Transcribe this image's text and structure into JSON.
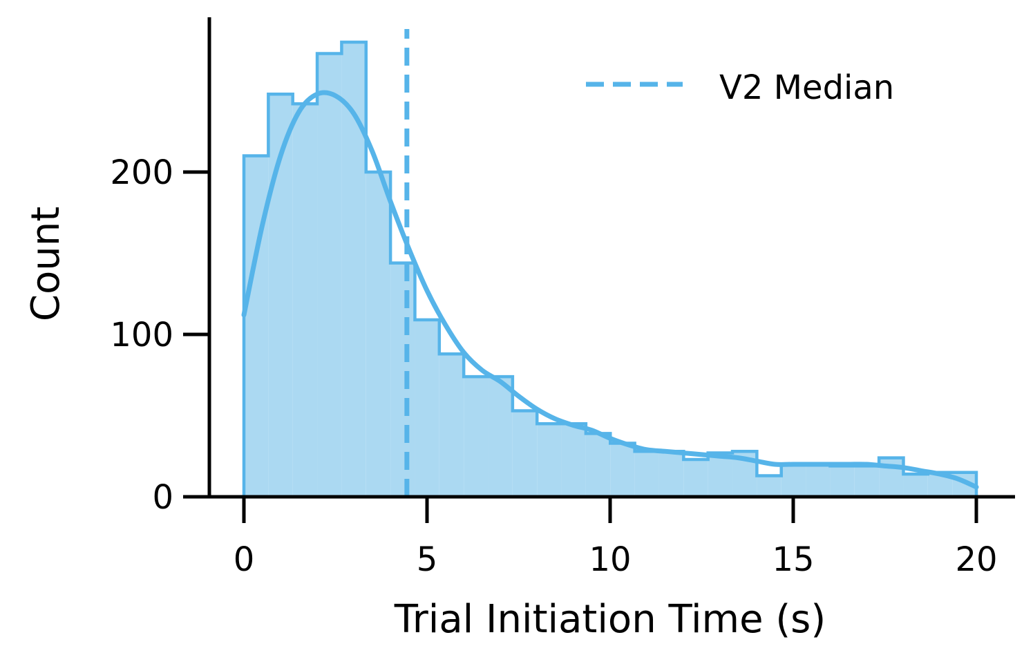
{
  "chart_data": {
    "type": "histogram",
    "title": "",
    "xlabel": "Trial Initiation Time (s)",
    "ylabel": "Count",
    "xlim": [
      -1,
      21
    ],
    "ylim": [
      0,
      295
    ],
    "xticks": [
      0,
      5,
      10,
      15,
      20
    ],
    "yticks": [
      0,
      100,
      200
    ],
    "grid": false,
    "legend": {
      "placement": "top-right",
      "entries": [
        {
          "label": "V2 Median",
          "style": "dashed",
          "color": "#56b4e9"
        }
      ]
    },
    "colors": {
      "bar_fill": "#abd9f2",
      "bar_edge": "#56b4e9",
      "kde_line": "#56b4e9",
      "median_line": "#56b4e9"
    },
    "bin_width": 0.667,
    "bin_start": 0,
    "counts": [
      210,
      248,
      242,
      273,
      280,
      200,
      144,
      109,
      88,
      74,
      74,
      53,
      45,
      45,
      39,
      33,
      28,
      28,
      23,
      27,
      28,
      13,
      20,
      20,
      19,
      19,
      24,
      14,
      15,
      15
    ],
    "kde": {
      "x": [
        0,
        0.5,
        1,
        1.5,
        2,
        2.5,
        3,
        3.5,
        4,
        4.5,
        5,
        5.5,
        6,
        6.5,
        7,
        7.5,
        8,
        8.5,
        9,
        9.5,
        10,
        10.5,
        11,
        11.5,
        12,
        12.5,
        13,
        13.5,
        14,
        14.5,
        15,
        15.5,
        16,
        16.5,
        17,
        17.5,
        18,
        18.5,
        19,
        19.5,
        20
      ],
      "y": [
        112,
        167,
        210,
        237,
        248,
        247,
        236,
        213,
        182,
        153,
        127,
        106,
        89,
        78,
        71,
        62,
        54,
        48,
        44,
        41,
        36,
        32,
        29,
        28,
        27,
        26,
        25,
        24,
        22,
        20,
        20,
        20,
        20,
        20,
        20,
        19,
        18,
        16,
        14,
        11,
        6
      ]
    },
    "median": 4.45
  }
}
